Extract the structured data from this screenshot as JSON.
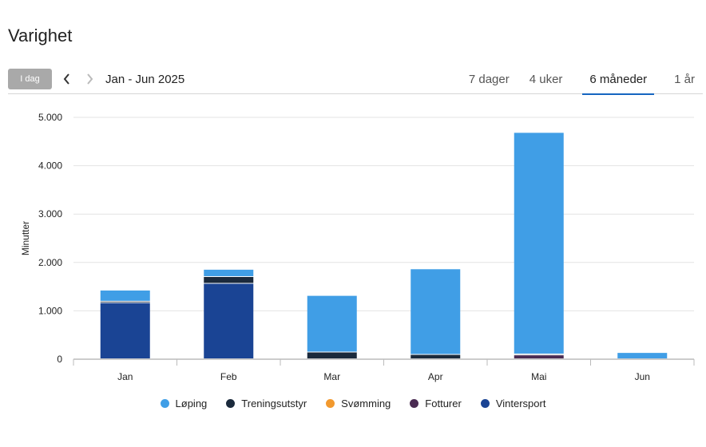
{
  "page": {
    "title": "Varighet"
  },
  "toolbar": {
    "today_label": "I dag",
    "range_label": "Jan - Jun 2025",
    "tabs": [
      {
        "label": "7 dager",
        "active": false
      },
      {
        "label": "4 uker",
        "active": false
      },
      {
        "label": "6 måneder",
        "active": true
      },
      {
        "label": "1 år",
        "active": false
      }
    ]
  },
  "chart_data": {
    "type": "bar",
    "stacked": true,
    "ylabel": "Minutter",
    "xlabel": "",
    "ylim": [
      0,
      5000
    ],
    "yticks": [
      0,
      1000,
      2000,
      3000,
      4000,
      5000
    ],
    "ytick_labels": [
      "0",
      "1.000",
      "2.000",
      "3.000",
      "4.000",
      "5.000"
    ],
    "grid": true,
    "legend_position": "bottom",
    "categories": [
      "Jan",
      "Feb",
      "Mar",
      "Apr",
      "Mai",
      "Jun"
    ],
    "series": [
      {
        "name": "Vintersport",
        "color": "#1a4494",
        "values": [
          1160,
          1560,
          0,
          0,
          0,
          0
        ]
      },
      {
        "name": "Fotturer",
        "color": "#4a2b52",
        "values": [
          0,
          0,
          0,
          0,
          80,
          0
        ]
      },
      {
        "name": "Svømming",
        "color": "#f2992e",
        "values": [
          0,
          0,
          0,
          0,
          0,
          0
        ]
      },
      {
        "name": "Treningsutstyr",
        "color": "#1b2a3c",
        "values": [
          30,
          140,
          140,
          90,
          20,
          0
        ]
      },
      {
        "name": "Løping",
        "color": "#409ee6",
        "values": [
          230,
          150,
          1170,
          1770,
          4580,
          130
        ]
      }
    ],
    "legend_order": [
      "Løping",
      "Treningsutstyr",
      "Svømming",
      "Fotturer",
      "Vintersport"
    ]
  }
}
